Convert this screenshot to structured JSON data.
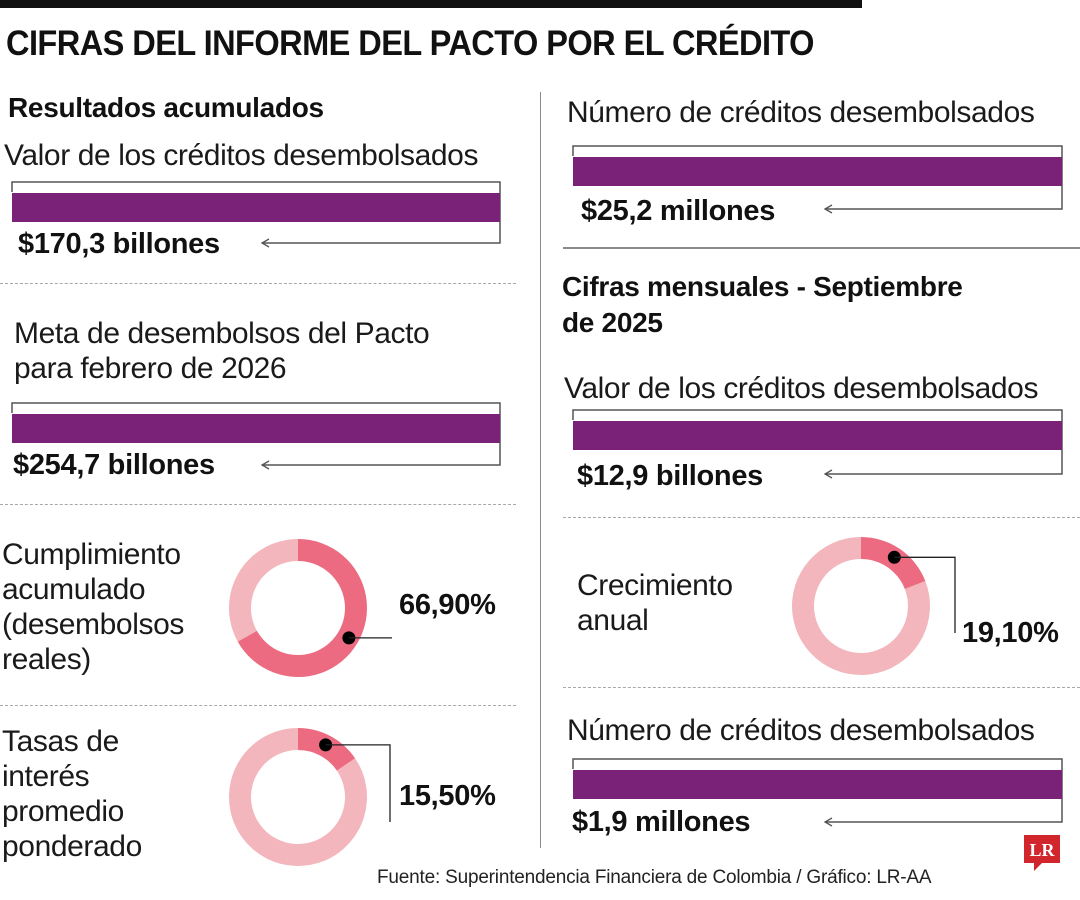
{
  "header": {
    "title": "CIFRAS DEL INFORME DEL PACTO POR EL CRÉDITO"
  },
  "left_section": {
    "heading": "Resultados acumulados",
    "bars": [
      {
        "label": "Valor de los créditos desembolsados",
        "value_text": "$170,3 billones"
      },
      {
        "label_line1": "Meta de desembolsos del Pacto",
        "label_line2": "para febrero de 2026",
        "value_text": "$254,7 billones"
      }
    ],
    "donuts": [
      {
        "label_lines": [
          "Cumplimiento",
          "acumulado",
          "(desembolsos",
          "reales)"
        ],
        "value_text": "66,90%"
      },
      {
        "label_lines": [
          "Tasas de",
          "interés",
          "promedio",
          "ponderado"
        ],
        "value_text": "15,50%"
      }
    ]
  },
  "right_section": {
    "top_bar": {
      "label": "Número de créditos desembolsados",
      "value_text": "$25,2 millones"
    },
    "heading_line1": "Cifras mensuales - Septiembre",
    "heading_line2": "de 2025",
    "bars": [
      {
        "label": "Valor de los créditos desembolsados",
        "value_text": "$12,9 billones"
      },
      {
        "label": "Número de créditos desembolsados",
        "value_text": "$1,9 millones"
      }
    ],
    "donut": {
      "label_lines": [
        "Crecimiento",
        "anual"
      ],
      "value_text": "19,10%"
    }
  },
  "footer": {
    "source": "Fuente: Superintendencia Financiera de Colombia / Gráfico: LR-AA",
    "logo_text": "LR"
  },
  "colors": {
    "bar_fill": "#7a2277",
    "donut_highlight": "#ec6b80",
    "donut_rest": "#f2b6bc",
    "logo_red": "#d0262c",
    "rule_gray": "#8a8a8a"
  },
  "chart_data": [
    {
      "type": "bar",
      "title": "Valor de los créditos desembolsados (Resultados acumulados)",
      "categories": [
        "Valor de los créditos desembolsados"
      ],
      "values": [
        170.3
      ],
      "unit": "billones de pesos",
      "value_label": "$170,3 billones"
    },
    {
      "type": "bar",
      "title": "Meta de desembolsos del Pacto para febrero de 2026",
      "categories": [
        "Meta"
      ],
      "values": [
        254.7
      ],
      "unit": "billones de pesos",
      "value_label": "$254,7 billones"
    },
    {
      "type": "pie",
      "title": "Cumplimiento acumulado (desembolsos reales)",
      "categories": [
        "Cumplido",
        "Resto"
      ],
      "values": [
        66.9,
        33.1
      ],
      "unit": "%",
      "value_label": "66,90%"
    },
    {
      "type": "pie",
      "title": "Tasas de interés promedio ponderado",
      "categories": [
        "Tasa",
        "Resto"
      ],
      "values": [
        15.5,
        84.5
      ],
      "unit": "%",
      "value_label": "15,50%"
    },
    {
      "type": "bar",
      "title": "Número de créditos desembolsados (Resultados acumulados)",
      "categories": [
        "Número de créditos desembolsados"
      ],
      "values": [
        25.2
      ],
      "unit": "millones",
      "value_label": "$25,2 millones"
    },
    {
      "type": "bar",
      "title": "Valor de los créditos desembolsados (Septiembre de 2025)",
      "categories": [
        "Valor de los créditos desembolsados"
      ],
      "values": [
        12.9
      ],
      "unit": "billones de pesos",
      "value_label": "$12,9 billones"
    },
    {
      "type": "pie",
      "title": "Crecimiento anual (Septiembre de 2025)",
      "categories": [
        "Crecimiento",
        "Resto"
      ],
      "values": [
        19.1,
        80.9
      ],
      "unit": "%",
      "value_label": "19,10%"
    },
    {
      "type": "bar",
      "title": "Número de créditos desembolsados (Septiembre de 2025)",
      "categories": [
        "Número de créditos desembolsados"
      ],
      "values": [
        1.9
      ],
      "unit": "millones",
      "value_label": "$1,9 millones"
    }
  ]
}
